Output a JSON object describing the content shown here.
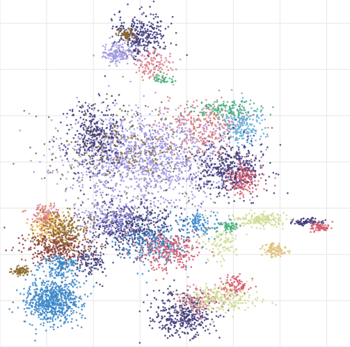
{
  "chart_data": {
    "type": "scatter",
    "title": "",
    "xlabel": "",
    "ylabel": "",
    "grid": true,
    "legend": "none",
    "xlim": [
      0,
      7.5
    ],
    "ylim": [
      0,
      7.5
    ],
    "palette": {
      "navy": "#3b3779",
      "lavender": "#9d97de",
      "brown": "#8c6a2c",
      "pink": "#d97a88",
      "red": "#d55b6e",
      "steelblue": "#3a86c8",
      "skyblue": "#5aa9d6",
      "green": "#3fae74",
      "olive": "#cfd98e",
      "tan": "#e0c079",
      "darkred": "#8b3b3b",
      "orange": "#e8b04a"
    },
    "clusters": [
      {
        "name": "",
        "color": "lavender",
        "cx": 3.1,
        "cy": 4.1,
        "sx": 1.05,
        "sy": 0.62,
        "n": 1400
      },
      {
        "name": "",
        "color": "navy",
        "cx": 2.05,
        "cy": 4.55,
        "sx": 0.4,
        "sy": 0.55,
        "n": 350
      },
      {
        "name": "",
        "color": "brown",
        "cx": 2.9,
        "cy": 4.25,
        "sx": 1.1,
        "sy": 0.6,
        "n": 260
      },
      {
        "name": "",
        "color": "pink",
        "cx": 4.4,
        "cy": 4.75,
        "sx": 0.55,
        "sy": 0.35,
        "n": 260
      },
      {
        "name": "",
        "color": "skyblue",
        "cx": 5.2,
        "cy": 4.8,
        "sx": 0.3,
        "sy": 0.25,
        "n": 200
      },
      {
        "name": "",
        "color": "green",
        "cx": 4.8,
        "cy": 5.15,
        "sx": 0.45,
        "sy": 0.12,
        "n": 120
      },
      {
        "name": "",
        "color": "navy",
        "cx": 4.95,
        "cy": 3.85,
        "sx": 0.45,
        "sy": 0.35,
        "n": 420
      },
      {
        "name": "",
        "color": "red",
        "cx": 5.2,
        "cy": 3.6,
        "sx": 0.22,
        "sy": 0.22,
        "n": 160
      },
      {
        "name": "",
        "color": "navy",
        "cx": 3.05,
        "cy": 6.75,
        "sx": 0.35,
        "sy": 0.3,
        "n": 300
      },
      {
        "name": "",
        "color": "lavender",
        "cx": 2.5,
        "cy": 6.35,
        "sx": 0.2,
        "sy": 0.14,
        "n": 160
      },
      {
        "name": "",
        "color": "brown",
        "cx": 2.7,
        "cy": 6.75,
        "sx": 0.12,
        "sy": 0.08,
        "n": 60
      },
      {
        "name": "",
        "color": "pink",
        "cx": 3.3,
        "cy": 6.1,
        "sx": 0.3,
        "sy": 0.2,
        "n": 120
      },
      {
        "name": "",
        "color": "green",
        "cx": 3.5,
        "cy": 5.8,
        "sx": 0.15,
        "sy": 0.08,
        "n": 40
      },
      {
        "name": "",
        "color": "navy",
        "cx": 2.8,
        "cy": 2.6,
        "sx": 0.6,
        "sy": 0.35,
        "n": 520
      },
      {
        "name": "",
        "color": "steelblue",
        "cx": 3.3,
        "cy": 2.25,
        "sx": 0.5,
        "sy": 0.3,
        "n": 260
      },
      {
        "name": "",
        "color": "red",
        "cx": 3.6,
        "cy": 2.05,
        "sx": 0.4,
        "sy": 0.25,
        "n": 240
      },
      {
        "name": "",
        "color": "lavender",
        "cx": 2.3,
        "cy": 2.8,
        "sx": 0.5,
        "sy": 0.25,
        "n": 200
      },
      {
        "name": "",
        "color": "navy",
        "cx": 1.95,
        "cy": 1.85,
        "sx": 0.22,
        "sy": 0.18,
        "n": 120
      },
      {
        "name": "",
        "color": "orange",
        "cx": 1.05,
        "cy": 2.65,
        "sx": 0.25,
        "sy": 0.25,
        "n": 200
      },
      {
        "name": "",
        "color": "pink",
        "cx": 0.95,
        "cy": 2.85,
        "sx": 0.2,
        "sy": 0.15,
        "n": 90
      },
      {
        "name": "",
        "color": "darkred",
        "cx": 1.2,
        "cy": 2.15,
        "sx": 0.45,
        "sy": 0.2,
        "n": 300
      },
      {
        "name": "",
        "color": "brown",
        "cx": 1.4,
        "cy": 2.5,
        "sx": 0.4,
        "sy": 0.3,
        "n": 240
      },
      {
        "name": "",
        "color": "steelblue",
        "cx": 1.1,
        "cy": 1.0,
        "sx": 0.38,
        "sy": 0.32,
        "n": 700
      },
      {
        "name": "",
        "color": "steelblue",
        "cx": 1.3,
        "cy": 1.75,
        "sx": 0.25,
        "sy": 0.15,
        "n": 140
      },
      {
        "name": "",
        "color": "brown",
        "cx": 0.45,
        "cy": 1.65,
        "sx": 0.1,
        "sy": 0.06,
        "n": 80
      },
      {
        "name": "",
        "color": "navy",
        "cx": 3.9,
        "cy": 0.7,
        "sx": 0.4,
        "sy": 0.3,
        "n": 380
      },
      {
        "name": "",
        "color": "pink",
        "cx": 4.25,
        "cy": 1.0,
        "sx": 0.3,
        "sy": 0.2,
        "n": 120
      },
      {
        "name": "",
        "color": "olive",
        "cx": 4.75,
        "cy": 1.05,
        "sx": 0.5,
        "sy": 0.18,
        "n": 220
      },
      {
        "name": "",
        "color": "red",
        "cx": 5.05,
        "cy": 1.35,
        "sx": 0.2,
        "sy": 0.12,
        "n": 90
      },
      {
        "name": "",
        "color": "olive",
        "cx": 5.6,
        "cy": 2.75,
        "sx": 0.35,
        "sy": 0.1,
        "n": 160
      },
      {
        "name": "",
        "color": "tan",
        "cx": 5.9,
        "cy": 2.1,
        "sx": 0.15,
        "sy": 0.1,
        "n": 100
      },
      {
        "name": "",
        "color": "olive",
        "cx": 4.75,
        "cy": 2.2,
        "sx": 0.25,
        "sy": 0.2,
        "n": 90
      },
      {
        "name": "",
        "color": "green",
        "cx": 4.85,
        "cy": 2.6,
        "sx": 0.15,
        "sy": 0.08,
        "n": 60
      },
      {
        "name": "",
        "color": "navy",
        "cx": 6.55,
        "cy": 2.7,
        "sx": 0.25,
        "sy": 0.05,
        "n": 70
      },
      {
        "name": "",
        "color": "red",
        "cx": 6.85,
        "cy": 2.6,
        "sx": 0.12,
        "sy": 0.07,
        "n": 70
      },
      {
        "name": "",
        "color": "steelblue",
        "cx": 4.25,
        "cy": 2.65,
        "sx": 0.25,
        "sy": 0.15,
        "n": 120
      }
    ]
  }
}
